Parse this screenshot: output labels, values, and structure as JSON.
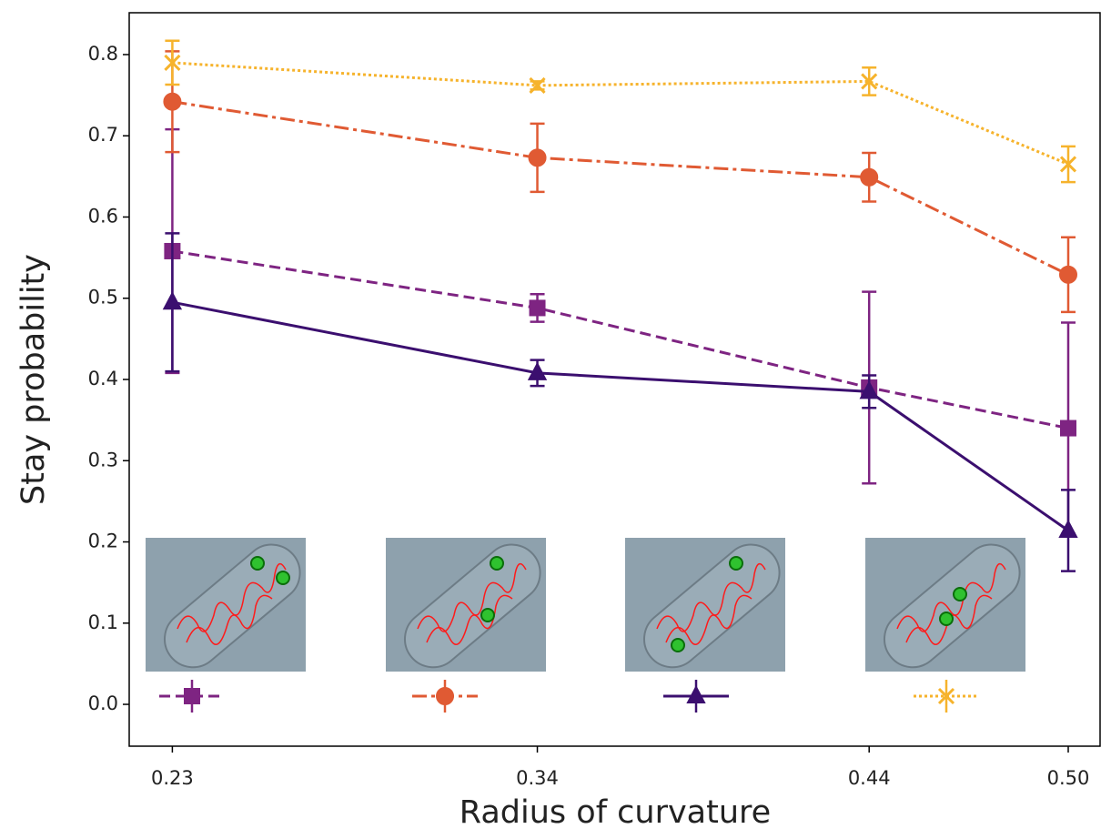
{
  "chart_data": {
    "type": "line",
    "x_label": "Radius of curvature",
    "y_label": "Stay probability",
    "x": [
      0.23,
      0.34,
      0.44,
      0.5
    ],
    "xlim": [
      0.217,
      0.5096
    ],
    "xticks": [
      0.23,
      0.34,
      0.44,
      {
        "value": 0.5,
        "label": "0.50"
      }
    ],
    "ylim": [
      -0.0515,
      0.8515
    ],
    "yticks": [
      {
        "value": 0,
        "label": "0.0"
      },
      0.1,
      0.2,
      0.3,
      0.4,
      0.5,
      0.6,
      0.7,
      0.8
    ],
    "series": [
      {
        "color": "#7e2482",
        "linestyle": "dashed",
        "marker": "square",
        "values": [
          0.558,
          0.488,
          0.39,
          0.34
        ],
        "errors": [
          0.15,
          0.017,
          0.118,
          0.13
        ]
      },
      {
        "color": "#e05a33",
        "linestyle": "dashdot",
        "marker": "circle",
        "values": [
          0.742,
          0.673,
          0.649,
          0.529
        ],
        "errors": [
          0.062,
          0.042,
          0.03,
          0.046
        ]
      },
      {
        "color": "#3b0f6f",
        "linestyle": "solid",
        "marker": "triangle",
        "values": [
          0.495,
          0.408,
          0.385,
          0.214
        ],
        "errors": [
          0.085,
          0.016,
          0.02,
          0.05
        ]
      },
      {
        "color": "#f6b32c",
        "linestyle": "dotted",
        "marker": "x",
        "values": [
          0.79,
          0.762,
          0.767,
          0.665
        ],
        "errors": [
          0.027,
          0.005,
          0.017,
          0.022
        ]
      }
    ]
  }
}
